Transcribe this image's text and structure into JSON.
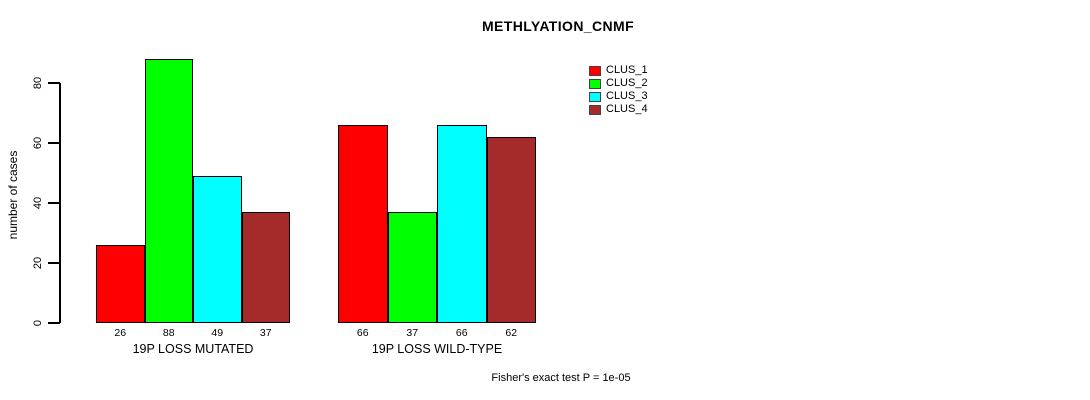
{
  "chart_data": {
    "type": "bar",
    "title": "METHLYATION_CNMF",
    "ylabel": "number of cases",
    "xlabel": "",
    "groups": [
      "19P LOSS MUTATED",
      "19P LOSS WILD-TYPE"
    ],
    "series": [
      {
        "name": "CLUS_1",
        "color": "#ff0000",
        "values": [
          26,
          66
        ]
      },
      {
        "name": "CLUS_2",
        "color": "#00ff00",
        "values": [
          88,
          37
        ]
      },
      {
        "name": "CLUS_3",
        "color": "#00ffff",
        "values": [
          49,
          66
        ]
      },
      {
        "name": "CLUS_4",
        "color": "#a52a2a",
        "values": [
          37,
          62
        ]
      }
    ],
    "bar_value_labels": [
      [
        26,
        88,
        49,
        37
      ],
      [
        66,
        37,
        66,
        62
      ]
    ],
    "yticks": [
      0,
      20,
      40,
      60,
      80
    ],
    "ylim": [
      0,
      88
    ],
    "grid": false,
    "legend_position": "top-right",
    "annotation": "Fisher's exact test P = 1e-05"
  },
  "colors": {
    "axis": "#000000",
    "text": "#000000",
    "background": "#ffffff"
  }
}
